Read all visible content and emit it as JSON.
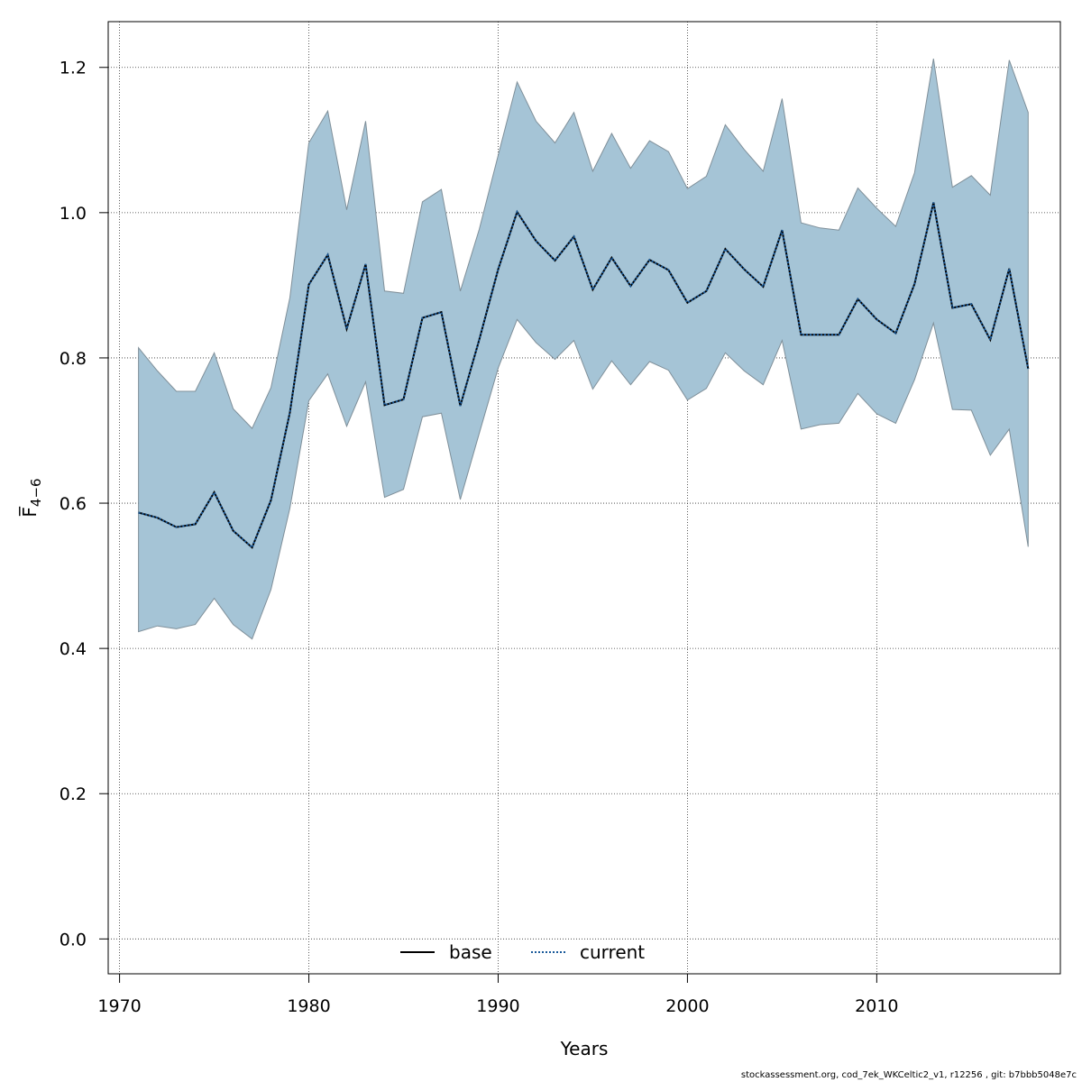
{
  "chart_data": {
    "type": "area",
    "xlabel": "Years",
    "ylabel": "F̅",
    "ylabel_sub": "4−6",
    "xlim": [
      1969.4,
      2019.7
    ],
    "ylim": [
      -0.048,
      1.263
    ],
    "x_ticks": [
      1970,
      1980,
      1990,
      2000,
      2010
    ],
    "y_ticks": [
      0.0,
      0.2,
      0.4,
      0.6,
      0.8,
      1.0,
      1.2
    ],
    "x_tick_labels": [
      "1970",
      "1980",
      "1990",
      "2000",
      "2010"
    ],
    "y_tick_labels": [
      "0.0",
      "0.2",
      "0.4",
      "0.6",
      "0.8",
      "1.0",
      "1.2"
    ],
    "grid": true,
    "legend_position": "bottom-center",
    "x": [
      1971,
      1972,
      1973,
      1974,
      1975,
      1976,
      1977,
      1978,
      1979,
      1980,
      1981,
      1982,
      1983,
      1984,
      1985,
      1986,
      1987,
      1988,
      1989,
      1990,
      1991,
      1992,
      1993,
      1994,
      1995,
      1996,
      1997,
      1998,
      1999,
      2000,
      2001,
      2002,
      2003,
      2004,
      2005,
      2006,
      2007,
      2008,
      2009,
      2010,
      2011,
      2012,
      2013,
      2014,
      2015,
      2016,
      2017,
      2018
    ],
    "band": {
      "color": "#a5c4d6",
      "edge_color": "#7f8f99",
      "upper": [
        0.814,
        0.782,
        0.754,
        0.754,
        0.807,
        0.73,
        0.703,
        0.759,
        0.883,
        1.096,
        1.14,
        1.004,
        1.126,
        0.892,
        0.889,
        1.015,
        1.032,
        0.892,
        0.977,
        1.079,
        1.18,
        1.126,
        1.096,
        1.138,
        1.057,
        1.109,
        1.061,
        1.099,
        1.084,
        1.033,
        1.05,
        1.121,
        1.087,
        1.057,
        1.157,
        0.986,
        0.979,
        0.976,
        1.034,
        1.006,
        0.981,
        1.055,
        1.212,
        1.035,
        1.051,
        1.024,
        1.21,
        1.138
      ],
      "lower": [
        0.423,
        0.431,
        0.427,
        0.433,
        0.469,
        0.433,
        0.413,
        0.481,
        0.593,
        0.741,
        0.778,
        0.706,
        0.767,
        0.608,
        0.619,
        0.719,
        0.724,
        0.605,
        0.696,
        0.786,
        0.853,
        0.821,
        0.798,
        0.824,
        0.757,
        0.796,
        0.763,
        0.795,
        0.783,
        0.742,
        0.758,
        0.807,
        0.782,
        0.763,
        0.824,
        0.702,
        0.708,
        0.71,
        0.751,
        0.723,
        0.71,
        0.77,
        0.848,
        0.729,
        0.728,
        0.666,
        0.702,
        0.54
      ]
    },
    "series": [
      {
        "name": "base",
        "color": "#000000",
        "style": "solid",
        "values": [
          0.587,
          0.58,
          0.567,
          0.571,
          0.615,
          0.562,
          0.539,
          0.604,
          0.725,
          0.901,
          0.942,
          0.84,
          0.929,
          0.735,
          0.743,
          0.855,
          0.863,
          0.734,
          0.825,
          0.922,
          1.001,
          0.961,
          0.934,
          0.967,
          0.894,
          0.938,
          0.899,
          0.935,
          0.921,
          0.876,
          0.892,
          0.95,
          0.922,
          0.898,
          0.976,
          0.832,
          0.832,
          0.832,
          0.881,
          0.853,
          0.834,
          0.902,
          1.014,
          0.869,
          0.874,
          0.825,
          0.923,
          0.785
        ]
      },
      {
        "name": "current",
        "color": "#1a5a9a",
        "style": "dotted",
        "values": [
          0.587,
          0.58,
          0.567,
          0.571,
          0.615,
          0.562,
          0.539,
          0.604,
          0.725,
          0.901,
          0.942,
          0.84,
          0.929,
          0.735,
          0.743,
          0.855,
          0.863,
          0.734,
          0.825,
          0.922,
          1.001,
          0.961,
          0.934,
          0.967,
          0.894,
          0.938,
          0.899,
          0.935,
          0.921,
          0.876,
          0.892,
          0.95,
          0.922,
          0.898,
          0.976,
          0.832,
          0.832,
          0.832,
          0.881,
          0.853,
          0.834,
          0.902,
          1.014,
          0.869,
          0.874,
          0.825,
          0.923,
          0.785
        ]
      }
    ]
  },
  "footer_text": "stockassessment.org, cod_7ek_WKCeltic2_v1, r12256 , git: b7bbb5048e7c"
}
